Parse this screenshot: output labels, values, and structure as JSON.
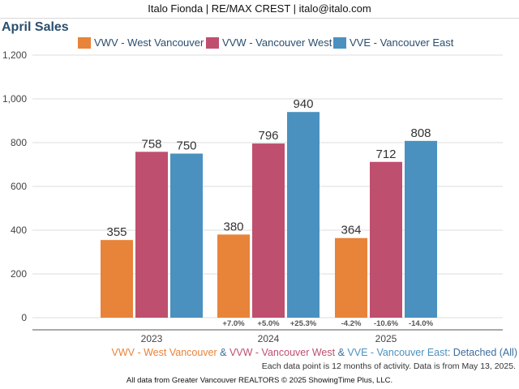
{
  "header": {
    "text": "Italo Fionda | RE/MAX CREST | italo@italo.com"
  },
  "colors": {
    "VWV": "#e8833a",
    "VVW": "#bf4f6e",
    "VVE": "#4a91c0",
    "title": "#2a4e6f",
    "footer_text": "#3a6e9e"
  },
  "chart_data": {
    "type": "bar",
    "title": "April Sales",
    "categories": [
      "2023",
      "2024",
      "2025"
    ],
    "series": [
      {
        "key": "VWV",
        "name": "VWV - West Vancouver",
        "values": [
          355,
          380,
          364
        ],
        "changes": [
          "",
          "+7.0%",
          "-4.2%"
        ]
      },
      {
        "key": "VVW",
        "name": "VVW - Vancouver West",
        "values": [
          758,
          796,
          712
        ],
        "changes": [
          "",
          "+5.0%",
          "-10.6%"
        ]
      },
      {
        "key": "VVE",
        "name": "VVE - Vancouver East",
        "values": [
          750,
          940,
          808
        ],
        "changes": [
          "",
          "+25.3%",
          "-14.0%"
        ]
      }
    ],
    "y_ticks": [
      "0",
      "200",
      "400",
      "600",
      "800",
      "1,000",
      "1,200"
    ],
    "ylim": [
      0,
      1200
    ],
    "grid": true,
    "legend_position": "top"
  },
  "footer": {
    "seg1": "VWV - West Vancouver",
    "amp1": " & ",
    "seg2": "VVW - Vancouver West",
    "amp2": " & ",
    "seg3": "VVE - Vancouver East",
    "seg4": ": Detached (All)",
    "note": "Each data point is 12 months of activity. Data is from May 13, 2025.",
    "source": "All data from Greater Vancouver REALTORS © 2025 ShowingTime Plus, LLC."
  }
}
